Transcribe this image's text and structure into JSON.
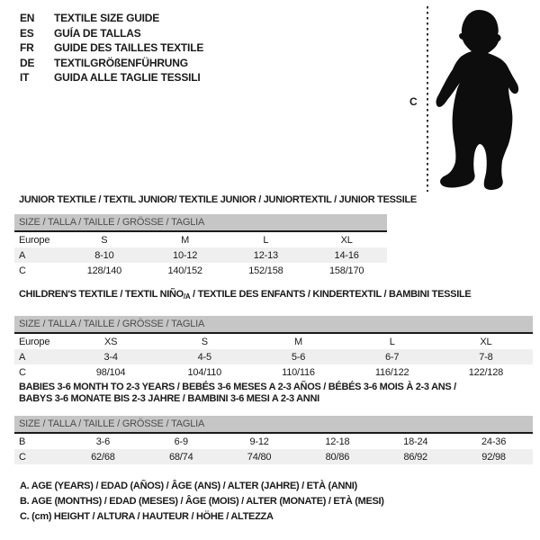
{
  "colors": {
    "text": "#1a1a1a",
    "size_bar_bg": "#c6c6c6",
    "size_bar_text": "#4d4d4d",
    "shaded_row_bg": "#efefef",
    "silhouette": "#0d0d0d"
  },
  "language_list": [
    {
      "code": "EN",
      "title": "TEXTILE SIZE GUIDE"
    },
    {
      "code": "ES",
      "title": "GUÍA DE TALLAS"
    },
    {
      "code": "FR",
      "title": "GUIDE DES TAILLES TEXTILE"
    },
    {
      "code": "DE",
      "title": "TEXTILGRÖßENFÜHRUNG"
    },
    {
      "code": "IT",
      "title": "GUIDA ALLE TAGLIE TESSILI"
    }
  ],
  "figure": {
    "height_label": "C"
  },
  "sections": {
    "junior": {
      "heading": "JUNIOR TEXTILE / TEXTIL JUNIOR/ TEXTILE JUNIOR / JUNIORTEXTIL / JUNIOR TESSILE",
      "size_bar": "SIZE / TALLA / TAILLE / GRÖSSE / TAGLIA",
      "table": {
        "rows": [
          {
            "cells": [
              "Europe",
              "S",
              "M",
              "L",
              "XL"
            ],
            "shaded": false
          },
          {
            "cells": [
              "A",
              "8-10",
              "10-12",
              "12-13",
              "14-16"
            ],
            "shaded": true
          },
          {
            "cells": [
              "C",
              "128/140",
              "140/152",
              "152/158",
              "158/170"
            ],
            "shaded": false
          }
        ]
      }
    },
    "children": {
      "heading_pre": "CHILDREN'S TEXTILE / TEXTIL NIÑO",
      "heading_sub": "/A",
      "heading_post": " / TEXTILE DES ENFANTS / KINDERTEXTIL / BAMBINI TESSILE",
      "size_bar": "SIZE / TALLA / TAILLE / GRÖSSE / TAGLIA",
      "table": {
        "rows": [
          {
            "cells": [
              "Europe",
              "XS",
              "S",
              "M",
              "L",
              "XL"
            ],
            "shaded": false
          },
          {
            "cells": [
              "A",
              "3-4",
              "4-5",
              "5-6",
              "6-7",
              "7-8"
            ],
            "shaded": true
          },
          {
            "cells": [
              "C",
              "98/104",
              "104/110",
              "110/116",
              "116/122",
              "122/128"
            ],
            "shaded": false
          }
        ]
      }
    },
    "babies": {
      "heading_line1": "BABIES 3-6 MONTH TO 2-3 YEARS / BEBÉS 3-6 MESES A 2-3 AÑOS / BÉBÉS 3-6 MOIS À 2-3 ANS /",
      "heading_line2": "BABYS 3-6 MONATE BIS 2-3 JAHRE / BAMBINI 3-6 MESI A 2-3 ANNI",
      "size_bar": "SIZE / TALLA / TAILLE / GRÖSSE / TAGLIA",
      "table": {
        "rows": [
          {
            "cells": [
              "B",
              "3-6",
              "6-9",
              "9-12",
              "12-18",
              "18-24",
              "24-36"
            ],
            "shaded": false
          },
          {
            "cells": [
              "C",
              "62/68",
              "68/74",
              "74/80",
              "80/86",
              "86/92",
              "92/98"
            ],
            "shaded": true
          }
        ]
      }
    }
  },
  "notes": [
    "A. AGE (YEARS) / EDAD (AÑOS) / ÂGE (ANS) / ALTER (JAHRE) / ETÀ (ANNI)",
    "B. AGE (MONTHS) / EDAD (MESES) / ÂGE (MOIS) / ALTER (MONATE) / ETÀ (MESI)",
    "C. (cm) HEIGHT / ALTURA / HAUTEUR / HÖHE / ALTEZZA"
  ]
}
